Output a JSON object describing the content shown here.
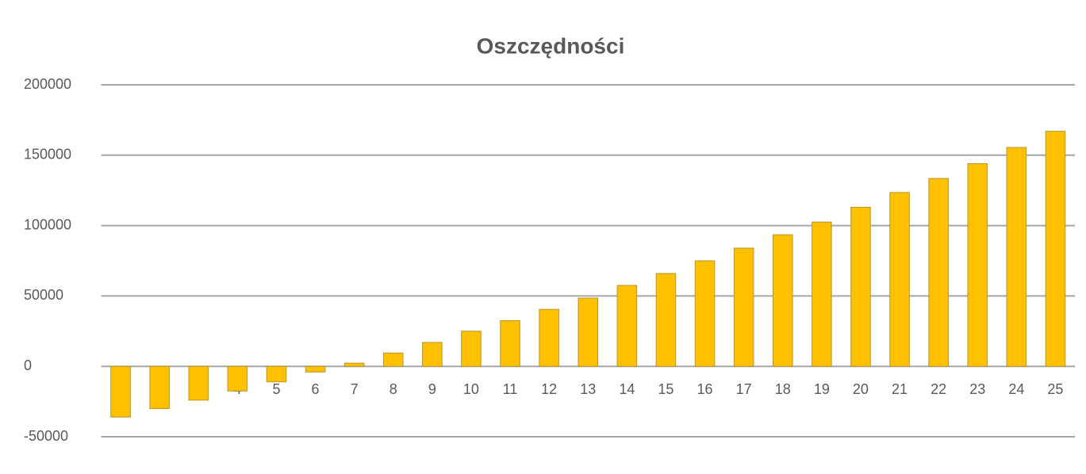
{
  "chart_data": {
    "type": "bar",
    "title": "Oszczędności",
    "categories": [
      null,
      null,
      null,
      "4",
      "5",
      "6",
      "7",
      "8",
      "9",
      "10",
      "11",
      "12",
      "13",
      "14",
      "15",
      "16",
      "17",
      "18",
      "19",
      "20",
      "21",
      "22",
      "23",
      "24",
      "25"
    ],
    "values": [
      -36000,
      -30000,
      -24000,
      -17500,
      -11000,
      -4000,
      2300,
      9500,
      17000,
      25000,
      32500,
      40500,
      48500,
      57500,
      66000,
      75000,
      84000,
      93500,
      102500,
      113000,
      123500,
      133500,
      144000,
      155500,
      167000
    ],
    "color": "#ffc000",
    "ylim": [
      -50000,
      200000
    ],
    "yticks": [
      -50000,
      0,
      50000,
      100000,
      150000,
      200000
    ],
    "grid": true
  }
}
